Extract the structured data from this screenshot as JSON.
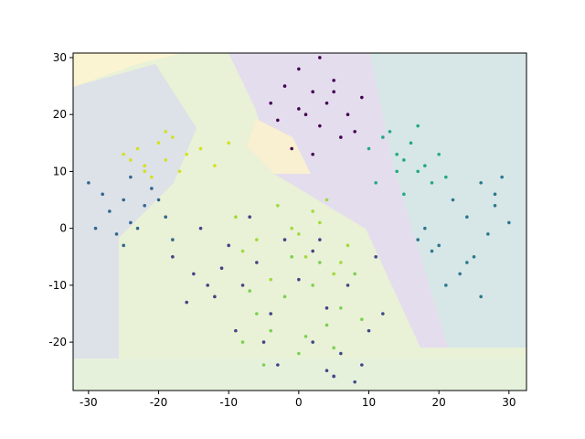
{
  "chart_data": {
    "type": "scatter",
    "xlim": [
      -32.2,
      32.5
    ],
    "ylim": [
      -28.5,
      30.8
    ],
    "xticks": [
      -30,
      -20,
      -10,
      0,
      10,
      20,
      30
    ],
    "yticks": [
      -20,
      -10,
      0,
      10,
      20,
      30
    ],
    "series": [
      {
        "color": "#440154",
        "x": [
          -4,
          -2,
          0,
          1,
          2,
          3,
          4,
          5,
          6,
          -1,
          3,
          7,
          9,
          2,
          -3,
          0,
          5,
          8
        ],
        "values": [
          22,
          25,
          28,
          20,
          24,
          18,
          22,
          26,
          16,
          14,
          30,
          20,
          23,
          13,
          19,
          21,
          24,
          17
        ]
      },
      {
        "color": "#30678d",
        "x": [
          -30,
          -28,
          -27,
          -25,
          -24,
          -22,
          -21,
          -26,
          -23,
          -19,
          -29,
          -24,
          -20,
          -18,
          -25
        ],
        "values": [
          8,
          6,
          3,
          5,
          1,
          4,
          7,
          -1,
          0,
          2,
          0,
          9,
          5,
          -2,
          -3
        ]
      },
      {
        "color": "#d2e21b",
        "x": [
          -25,
          -23,
          -22,
          -20,
          -19,
          -18,
          -17,
          -21,
          -24,
          -16,
          -14,
          -12,
          -10,
          -19,
          -22
        ],
        "values": [
          13,
          14,
          11,
          15,
          12,
          16,
          10,
          9,
          12,
          13,
          14,
          11,
          15,
          17,
          10
        ]
      },
      {
        "color": "#22a884",
        "x": [
          10,
          12,
          14,
          15,
          16,
          17,
          18,
          13,
          19,
          20,
          15,
          11,
          17,
          21,
          14
        ],
        "values": [
          14,
          16,
          13,
          12,
          15,
          10,
          11,
          17,
          8,
          13,
          6,
          8,
          18,
          9,
          10
        ]
      },
      {
        "color": "#2a788e",
        "x": [
          18,
          20,
          22,
          24,
          25,
          26,
          27,
          28,
          29,
          30,
          23,
          21,
          19,
          26,
          28,
          24,
          17
        ],
        "values": [
          0,
          -3,
          5,
          2,
          -5,
          8,
          -1,
          4,
          9,
          1,
          -8,
          -10,
          -4,
          -12,
          6,
          -6,
          -2
        ]
      },
      {
        "color": "#414487",
        "x": [
          -18,
          -15,
          -12,
          -10,
          -8,
          -6,
          -4,
          -2,
          0,
          -14,
          -9,
          -5,
          -11,
          -16,
          -7,
          2,
          4,
          -3,
          -13,
          5
        ],
        "values": [
          -5,
          -8,
          -12,
          -3,
          -10,
          -6,
          -15,
          -2,
          -9,
          0,
          -18,
          -20,
          -7,
          -13,
          2,
          -4,
          -14,
          -24,
          -10,
          -26
        ]
      },
      {
        "color": "#7ad151",
        "x": [
          -8,
          -6,
          -4,
          -2,
          0,
          2,
          4,
          6,
          8,
          -5,
          1,
          3,
          -7,
          5,
          9,
          -1
        ],
        "values": [
          -20,
          -15,
          -18,
          -12,
          -22,
          -10,
          -17,
          -14,
          -8,
          -24,
          -19,
          -6,
          -11,
          -21,
          -16,
          -5
        ]
      },
      {
        "color": "#a0da39",
        "x": [
          -9,
          -6,
          -3,
          -1,
          1,
          3,
          5,
          7,
          -4,
          2,
          6,
          -8,
          0,
          4
        ],
        "values": [
          2,
          -2,
          4,
          0,
          -5,
          1,
          -8,
          -3,
          -9,
          3,
          -6,
          -4,
          -1,
          5
        ]
      },
      {
        "color": "#3e4989",
        "x": [
          2,
          4,
          6,
          8,
          10,
          12,
          7,
          5,
          9,
          11,
          3
        ],
        "values": [
          -20,
          -25,
          -22,
          -27,
          -18,
          -15,
          -10,
          -26,
          -24,
          -5,
          -2
        ]
      }
    ]
  }
}
